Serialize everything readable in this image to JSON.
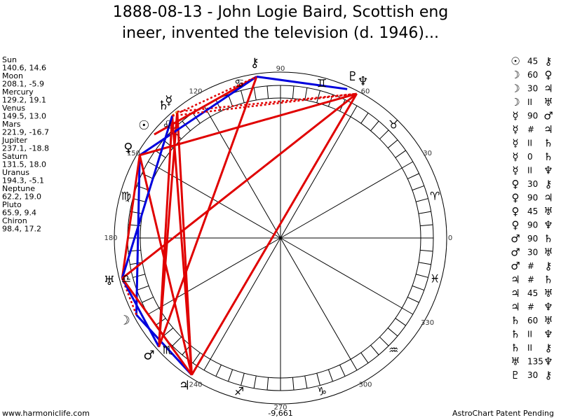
{
  "header": {
    "title_line1": "1888-08-13 - John Logie Baird, Scottish eng",
    "title_line2": "ineer, invented the television (d. 1946)..."
  },
  "planets": [
    {
      "name": "Sun",
      "glyph": "☉",
      "coords": "140.6, 14.6"
    },
    {
      "name": "Moon",
      "glyph": "☽",
      "coords": "208.1, -5.9"
    },
    {
      "name": "Mercury",
      "glyph": "☿",
      "coords": "129.2, 19.1"
    },
    {
      "name": "Venus",
      "glyph": "♀",
      "coords": "149.5, 13.0"
    },
    {
      "name": "Mars",
      "glyph": "♂",
      "coords": "221.9, -16.7"
    },
    {
      "name": "Jupiter",
      "glyph": "♃",
      "coords": "237.1, -18.8"
    },
    {
      "name": "Saturn",
      "glyph": "♄",
      "coords": "131.5, 18.0"
    },
    {
      "name": "Uranus",
      "glyph": "♅",
      "coords": "194.3, -5.1"
    },
    {
      "name": "Neptune",
      "glyph": "♆",
      "coords": "62.2, 19.0"
    },
    {
      "name": "Pluto",
      "glyph": "♇",
      "coords": "65.9, 9.4"
    },
    {
      "name": "Chiron",
      "glyph": "⚷",
      "coords": "98.4, 17.2"
    }
  ],
  "aspects": [
    {
      "from": "☉",
      "label": "45",
      "to": "⚷"
    },
    {
      "from": "☽",
      "label": "60",
      "to": "♀"
    },
    {
      "from": "☽",
      "label": "30",
      "to": "♃"
    },
    {
      "from": "☽",
      "label": "II",
      "to": "♅"
    },
    {
      "from": "☿",
      "label": "90",
      "to": "♂"
    },
    {
      "from": "☿",
      "label": "#",
      "to": "♃"
    },
    {
      "from": "☿",
      "label": "II",
      "to": "♄"
    },
    {
      "from": "☿",
      "label": "0",
      "to": "♄"
    },
    {
      "from": "☿",
      "label": "II",
      "to": "♆"
    },
    {
      "from": "♀",
      "label": "30",
      "to": "⚷"
    },
    {
      "from": "♀",
      "label": "90",
      "to": "♃"
    },
    {
      "from": "♀",
      "label": "45",
      "to": "♅"
    },
    {
      "from": "♀",
      "label": "90",
      "to": "♆"
    },
    {
      "from": "♂",
      "label": "90",
      "to": "♄"
    },
    {
      "from": "♂",
      "label": "30",
      "to": "♅"
    },
    {
      "from": "♂",
      "label": "#",
      "to": "⚷"
    },
    {
      "from": "♃",
      "label": "#",
      "to": "♄"
    },
    {
      "from": "♃",
      "label": "45",
      "to": "♅"
    },
    {
      "from": "♃",
      "label": "#",
      "to": "♆"
    },
    {
      "from": "♄",
      "label": "60",
      "to": "♅"
    },
    {
      "from": "♄",
      "label": "II",
      "to": "♆"
    },
    {
      "from": "♄",
      "label": "II",
      "to": "⚷"
    },
    {
      "from": "♅",
      "label": "135",
      "to": "♆"
    },
    {
      "from": "♇",
      "label": "30",
      "to": "⚷"
    }
  ],
  "degree_labels": [
    0,
    30,
    60,
    90,
    120,
    150,
    180,
    240,
    270,
    300,
    330
  ],
  "zodiac": [
    "♈",
    "♉",
    "♊",
    "♋",
    "♌",
    "♍",
    "♎",
    "♏",
    "♐",
    "♑",
    "♒",
    "♓"
  ],
  "bottom_value": "-9,661",
  "footer": {
    "left": "www.harmoniclife.com",
    "right": "AstroChart Patent Pending"
  }
}
